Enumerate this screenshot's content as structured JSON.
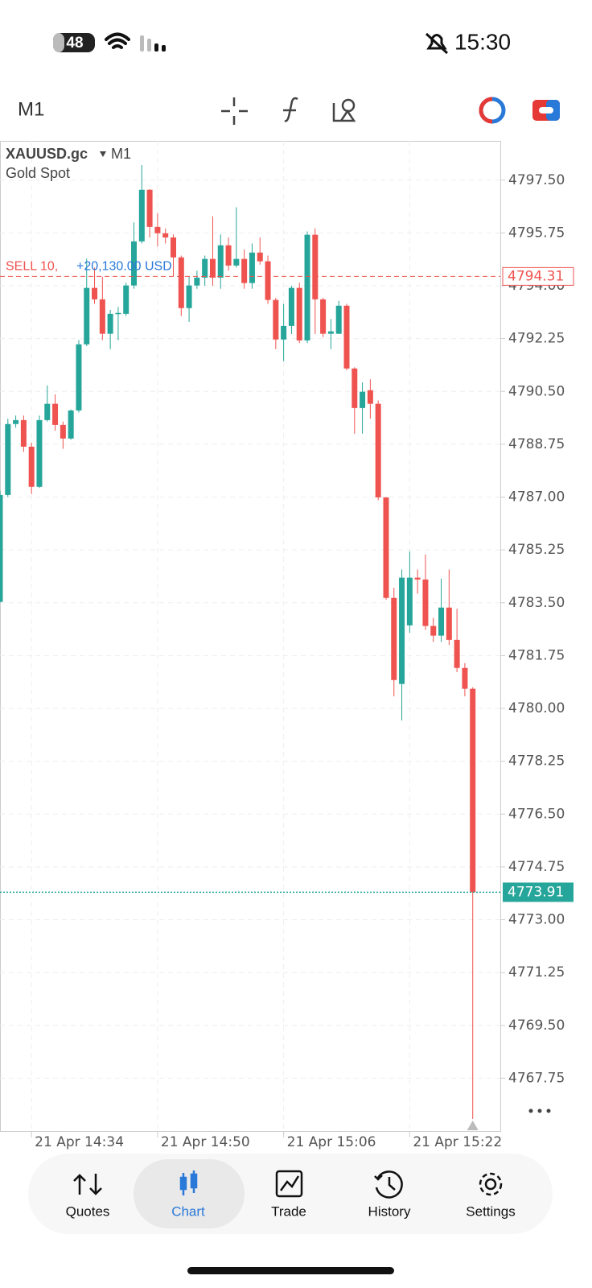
{
  "status_bar": {
    "battery": "48",
    "time": "15:30"
  },
  "toolbar": {
    "timeframe": "M1"
  },
  "chart_data": {
    "type": "candlestick",
    "title": "XAUUSD.gc",
    "timeframe": "M1",
    "subtitle": "Gold Spot",
    "up_color": "#26a69a",
    "down_color": "#ef5350",
    "grid": true,
    "ylim": [
      4766.0,
      4798.8
    ],
    "yticks": [
      {
        "value": 4797.5,
        "label": "4797.50"
      },
      4795.75,
      {
        "value": 4794,
        "label": "4794.00"
      },
      4792.25,
      {
        "value": 4790.5,
        "label": "4790.50"
      },
      4788.75,
      {
        "value": 4787,
        "label": "4787.00"
      },
      4785.25,
      {
        "value": 4783.5,
        "label": "4783.50"
      },
      4781.75,
      {
        "value": 4780,
        "label": "4780.00"
      },
      4778.25,
      {
        "value": 4776.5,
        "label": "4776.50"
      },
      4774.75,
      {
        "value": 4773,
        "label": "4773.00"
      },
      4771.25,
      {
        "value": 4769.5,
        "label": "4769.50"
      },
      4767.75
    ],
    "xlim": [
      0,
      63.5
    ],
    "xticks": [
      {
        "value": 4,
        "label": "21 Apr 14:34"
      },
      {
        "value": 20,
        "label": "21 Apr 14:50"
      },
      {
        "value": 36,
        "label": "21 Apr 15:06"
      },
      {
        "value": 52,
        "label": "21 Apr 15:22"
      }
    ],
    "open": [
      4783.53,
      4787.07,
      4789.42,
      4789.55,
      4788.67,
      4787.34,
      4789.55,
      4790.09,
      4789.39,
      4788.94,
      4789.87,
      4792.06,
      4793.93,
      4793.55,
      4792.41,
      4793.07,
      4793.07,
      4794.01,
      4795.47,
      4797.18,
      4795.95,
      4795.74,
      4795.6,
      4794.94,
      4793.26,
      4794.01,
      4794.27,
      4794.89,
      4794.27,
      4795.34,
      4794.67,
      4794.89,
      4794.09,
      4795.1,
      4794.81,
      4793.53,
      4792.22,
      4792.67,
      4793.93,
      4792.19,
      4795.69,
      4793.55,
      4792.41,
      4792.41,
      4793.34,
      4791.26,
      4789.95,
      4790.54,
      4790.09,
      4786.99,
      4783.66,
      4780.81,
      4782.75,
      4784.33,
      4784.27,
      4782.73,
      4782.41,
      4783.34,
      4782.27,
      4781.34,
      4780.65
    ],
    "high": [
      4787.2,
      4789.6,
      4789.7,
      4789.7,
      4788.8,
      4789.7,
      4790.7,
      4790.4,
      4789.5,
      4789.9,
      4792.2,
      4794.9,
      4794.6,
      4794.3,
      4793.2,
      4793.3,
      4794.1,
      4796.1,
      4798.0,
      4797.2,
      4796.4,
      4795.9,
      4795.7,
      4795.0,
      4794.3,
      4794.5,
      4795.0,
      4796.3,
      4795.7,
      4795.6,
      4796.6,
      4795.2,
      4795.4,
      4795.6,
      4795.0,
      4793.6,
      4793.4,
      4794.0,
      4794.1,
      4795.8,
      4795.9,
      4793.6,
      4792.9,
      4793.5,
      4793.4,
      4791.3,
      4790.8,
      4790.9,
      4790.2,
      4787.0,
      4784.0,
      4784.6,
      4785.2,
      4784.6,
      4785.1,
      4783.0,
      4784.3,
      4784.6,
      4783.3,
      4781.5,
      4780.7
    ],
    "low": [
      4783.5,
      4787.0,
      4789.3,
      4788.5,
      4787.1,
      4787.3,
      4789.5,
      4789.2,
      4788.6,
      4788.9,
      4789.8,
      4792.0,
      4793.4,
      4792.2,
      4791.9,
      4792.2,
      4793.0,
      4793.9,
      4795.4,
      4795.6,
      4795.3,
      4795.4,
      4794.3,
      4793.0,
      4792.8,
      4793.9,
      4794.0,
      4794.0,
      4793.9,
      4794.5,
      4794.6,
      4793.9,
      4793.9,
      4794.7,
      4793.4,
      4791.9,
      4791.5,
      4792.4,
      4792.1,
      4792.1,
      4792.4,
      4792.3,
      4791.9,
      4792.4,
      4791.2,
      4789.1,
      4789.1,
      4789.6,
      4786.9,
      4783.6,
      4780.4,
      4779.6,
      4782.5,
      4783.8,
      4782.6,
      4782.2,
      4782.2,
      4782.1,
      4781.2,
      4780.4,
      4766.4
    ],
    "close": [
      4787.07,
      4789.42,
      4789.55,
      4788.67,
      4787.34,
      4789.55,
      4790.09,
      4789.39,
      4788.94,
      4789.87,
      4792.06,
      4793.93,
      4793.55,
      4792.41,
      4793.07,
      4793.1,
      4794.01,
      4795.47,
      4797.18,
      4795.95,
      4795.74,
      4795.6,
      4794.94,
      4793.26,
      4794.01,
      4794.27,
      4794.89,
      4794.27,
      4795.34,
      4794.67,
      4794.89,
      4794.09,
      4795.1,
      4794.81,
      4793.53,
      4792.22,
      4792.67,
      4793.93,
      4792.19,
      4795.69,
      4793.55,
      4792.41,
      4792.49,
      4793.34,
      4791.26,
      4789.95,
      4790.49,
      4790.09,
      4786.99,
      4783.66,
      4780.94,
      4784.33,
      4784.33,
      4784.27,
      4782.73,
      4782.41,
      4783.34,
      4782.27,
      4781.34,
      4780.65,
      4773.91
    ],
    "order_line": {
      "side": "SELL 10,",
      "profit": "+20,130.00 USD",
      "value": 4794.31,
      "color": "#ef5350",
      "profit_color": "#2979d9"
    },
    "price_line": {
      "value": 4773.91,
      "color": "#26a69a"
    }
  },
  "nav": [
    "Quotes",
    "Chart",
    "Trade",
    "History",
    "Settings"
  ]
}
